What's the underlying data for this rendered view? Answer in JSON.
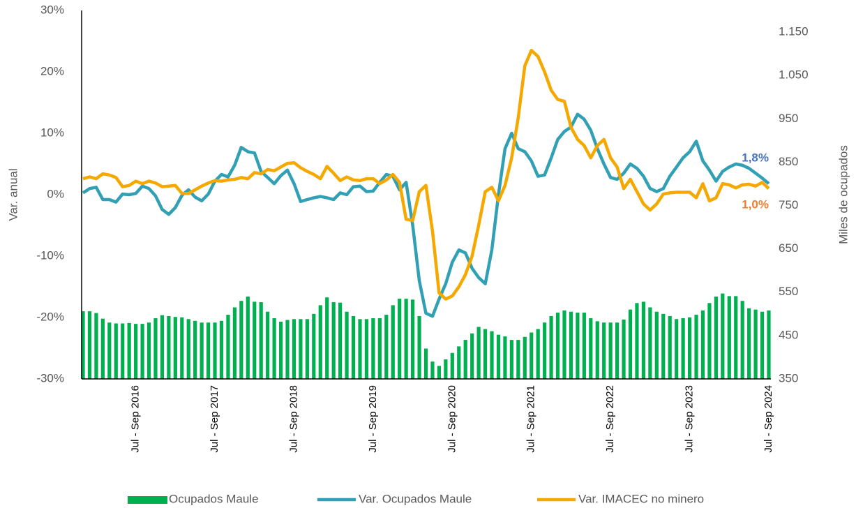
{
  "chart_data": {
    "type": "combo",
    "y_label": "Var. anual",
    "y2_label": "Miles de ocupados",
    "categories": [
      null,
      null,
      null,
      null,
      null,
      null,
      null,
      null,
      "Jul - Sep 2016",
      null,
      null,
      null,
      null,
      null,
      null,
      null,
      null,
      null,
      null,
      null,
      "Jul - Sep 2017",
      null,
      null,
      null,
      null,
      null,
      null,
      null,
      null,
      null,
      null,
      null,
      "Jul - Sep 2018",
      null,
      null,
      null,
      null,
      null,
      null,
      null,
      null,
      null,
      null,
      null,
      "Jul - Sep 2019",
      null,
      null,
      null,
      null,
      null,
      null,
      null,
      null,
      null,
      null,
      null,
      "Jul - Sep 2020",
      null,
      null,
      null,
      null,
      null,
      null,
      null,
      null,
      null,
      null,
      null,
      "Jul - Sep 2021",
      null,
      null,
      null,
      null,
      null,
      null,
      null,
      null,
      null,
      null,
      null,
      "Jul - Sep 2022",
      null,
      null,
      null,
      null,
      null,
      null,
      null,
      null,
      null,
      null,
      null,
      "Jul - Sep 2023",
      null,
      null,
      null,
      null,
      null,
      null,
      null,
      null,
      null,
      null,
      null,
      "Jul - Sep 2024"
    ],
    "ylim": [
      -30,
      30
    ],
    "yticks": [
      {
        "value": -30,
        "label": "-30%"
      },
      {
        "value": -20,
        "label": "-20%"
      },
      {
        "value": -10,
        "label": "-10%"
      },
      {
        "value": 0,
        "label": "0%"
      },
      {
        "value": 10,
        "label": "10%"
      },
      {
        "value": 20,
        "label": "20%"
      },
      {
        "value": 30,
        "label": "30%"
      }
    ],
    "y2lim": [
      350,
      1200
    ],
    "y2ticks": [
      350,
      450,
      550,
      650,
      750,
      850,
      950,
      {
        "value": 1050,
        "label": "1.050"
      },
      {
        "value": 1150,
        "label": "1.150"
      }
    ],
    "legend": "bottom",
    "series": [
      {
        "name": "Ocupados Maule",
        "type": "bar",
        "axis": "y2",
        "color": "#00b050",
        "values": [
          506,
          506,
          502,
          489,
          480,
          478,
          478,
          479,
          477,
          477,
          480,
          490,
          497,
          495,
          493,
          492,
          488,
          484,
          480,
          480,
          480,
          484,
          498,
          515,
          530,
          540,
          528,
          527,
          505,
          490,
          482,
          486,
          488,
          488,
          488,
          500,
          520,
          538,
          527,
          526,
          505,
          495,
          488,
          488,
          490,
          490,
          498,
          520,
          535,
          535,
          533,
          495,
          420,
          390,
          380,
          395,
          410,
          425,
          440,
          455,
          470,
          465,
          460,
          452,
          448,
          440,
          440,
          447,
          457,
          465,
          480,
          495,
          503,
          508,
          505,
          503,
          503,
          490,
          483,
          480,
          480,
          480,
          487,
          510,
          525,
          528,
          515,
          505,
          500,
          495,
          488,
          490,
          492,
          498,
          508,
          525,
          540,
          547,
          541,
          541,
          530,
          513,
          510,
          505,
          508
        ]
      },
      {
        "name": "Var. Ocupados Maule",
        "type": "line",
        "color": "#31a0b4",
        "label_color": "#4472c4",
        "values": [
          0.3,
          1.0,
          1.2,
          -0.8,
          -0.8,
          -1.2,
          0.1,
          0.0,
          0.2,
          1.4,
          1.0,
          -0.2,
          -2.4,
          -3.2,
          -2.1,
          -0.1,
          0.8,
          -0.4,
          -1.0,
          0.1,
          2.2,
          3.3,
          2.9,
          4.8,
          7.7,
          7.0,
          6.8,
          3.8,
          2.8,
          1.8,
          3.1,
          4.0,
          1.8,
          -1.1,
          -0.8,
          -0.5,
          -0.3,
          -0.5,
          -0.8,
          0.3,
          0.0,
          1.3,
          1.4,
          0.5,
          0.6,
          2.0,
          3.3,
          3.0,
          0.8,
          2.0,
          -5,
          -14,
          -19.3,
          -19.8,
          -17,
          -14.5,
          -11,
          -9,
          -9.5,
          -12,
          -13.5,
          -14.5,
          -9,
          0,
          7.5,
          10,
          7.5,
          7,
          5.5,
          3,
          3.2,
          6,
          9,
          10.3,
          11,
          13.1,
          12.3,
          10.5,
          7.5,
          5,
          2.8,
          2.5,
          3.5,
          5,
          4.3,
          3,
          1,
          0.5,
          1,
          3,
          4.5,
          6,
          7,
          8.7,
          5.5,
          4,
          2.2,
          3.8,
          4.5,
          5,
          4.8,
          4.3,
          3.5,
          2.7,
          1.8
        ],
        "value_labels": [
          null,
          null,
          null,
          null,
          null,
          null,
          null,
          null,
          null,
          null,
          null,
          null,
          null,
          null,
          null,
          null,
          null,
          null,
          null,
          null,
          null,
          null,
          null,
          null,
          null,
          null,
          null,
          null,
          null,
          null,
          null,
          null,
          null,
          null,
          null,
          null,
          null,
          null,
          null,
          null,
          null,
          null,
          null,
          null,
          null,
          null,
          null,
          null,
          null,
          null,
          null,
          null,
          null,
          null,
          null,
          null,
          null,
          null,
          null,
          null,
          null,
          null,
          null,
          null,
          null,
          null,
          null,
          null,
          null,
          null,
          null,
          null,
          null,
          null,
          null,
          null,
          null,
          null,
          null,
          null,
          null,
          null,
          null,
          null,
          null,
          null,
          null,
          null,
          null,
          null,
          null,
          null,
          null,
          null,
          null,
          null,
          null,
          null,
          null,
          null,
          null,
          null,
          null,
          null,
          "1,8%"
        ]
      },
      {
        "name": "Var. IMACEC no minero",
        "type": "line",
        "color": "#f5a800",
        "label_color": "#ed7d31",
        "values": [
          2.6,
          2.9,
          2.6,
          3.4,
          3.2,
          2.8,
          1.3,
          1.5,
          2.2,
          1.8,
          2.2,
          1.9,
          1.3,
          1.4,
          1.5,
          0.2,
          0.2,
          0.8,
          1.4,
          1.9,
          2.3,
          2.2,
          2.4,
          2.5,
          2.8,
          2.6,
          3.6,
          3.4,
          4.1,
          3.9,
          4.5,
          5.1,
          5.2,
          4.4,
          3.8,
          3.3,
          2.6,
          4.6,
          3.5,
          2.3,
          2.9,
          2.4,
          2.3,
          2.6,
          2.6,
          1.8,
          2.4,
          3.3,
          2.0,
          -4.0,
          -4.2,
          0.5,
          1.5,
          -6,
          -16,
          -17,
          -16.5,
          -15,
          -13,
          -10,
          -5,
          0.5,
          1.2,
          -1,
          1.5,
          6,
          12.5,
          21,
          23.5,
          22.5,
          20,
          17,
          15.5,
          15.2,
          11,
          9,
          8,
          6,
          8,
          9,
          6,
          4.5,
          1,
          2.5,
          0.5,
          -1.5,
          -2.5,
          -1.5,
          0.1,
          0.3,
          0.4,
          0.4,
          0.4,
          -0.5,
          1.8,
          -1,
          -0.5,
          1.8,
          1.6,
          1.1,
          1.6,
          1.7,
          1.4,
          2.0,
          1.0
        ],
        "value_labels": [
          null,
          null,
          null,
          null,
          null,
          null,
          null,
          null,
          null,
          null,
          null,
          null,
          null,
          null,
          null,
          null,
          null,
          null,
          null,
          null,
          null,
          null,
          null,
          null,
          null,
          null,
          null,
          null,
          null,
          null,
          null,
          null,
          null,
          null,
          null,
          null,
          null,
          null,
          null,
          null,
          null,
          null,
          null,
          null,
          null,
          null,
          null,
          null,
          null,
          null,
          null,
          null,
          null,
          null,
          null,
          null,
          null,
          null,
          null,
          null,
          null,
          null,
          null,
          null,
          null,
          null,
          null,
          null,
          null,
          null,
          null,
          null,
          null,
          null,
          null,
          null,
          null,
          null,
          null,
          null,
          null,
          null,
          null,
          null,
          null,
          null,
          null,
          null,
          null,
          null,
          null,
          null,
          null,
          null,
          null,
          null,
          null,
          null,
          null,
          null,
          null,
          null,
          null,
          null,
          "1,0%"
        ]
      }
    ]
  }
}
